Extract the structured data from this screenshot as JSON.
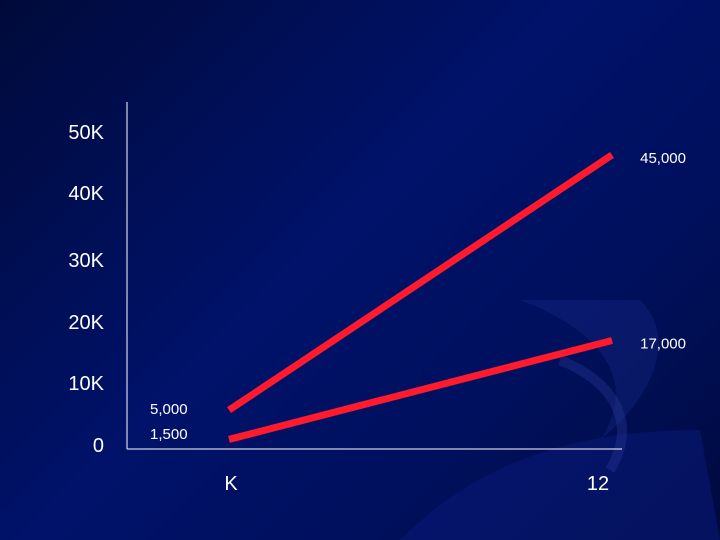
{
  "chart_data": {
    "type": "line",
    "x_tick_labels": [
      "K",
      "12"
    ],
    "y_tick_labels": [
      "0",
      "10K",
      "20K",
      "30K",
      "40K",
      "50K"
    ],
    "y_ticks": [
      0,
      10000,
      20000,
      30000,
      40000,
      50000
    ],
    "ylim": [
      0,
      50000
    ],
    "grid": false,
    "series": [
      {
        "values": [
          5000,
          45000
        ],
        "labels": [
          "5,000",
          "45,000"
        ],
        "color": "#ff1a2e"
      },
      {
        "values": [
          1500,
          17000
        ],
        "labels": [
          "1,500",
          "17,000"
        ],
        "color": "#ff1a2e"
      }
    ]
  }
}
